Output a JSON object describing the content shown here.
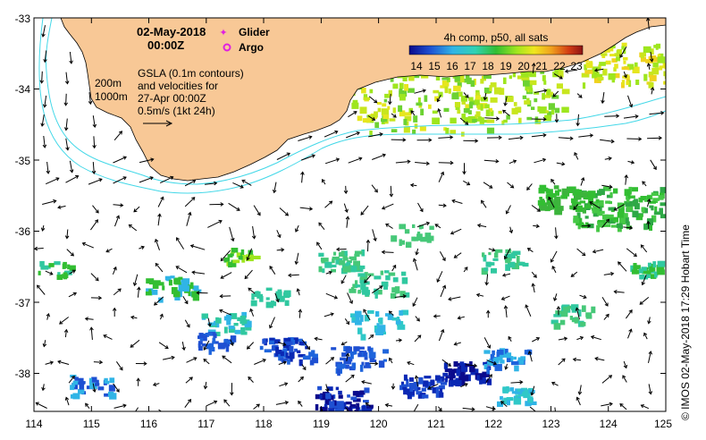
{
  "map": {
    "date": "02-May-2018",
    "time": "00:00Z",
    "legend_glider": "Glider",
    "legend_argo": "Argo",
    "sla_line1": "GSLA (0.1m contours)",
    "sla_line2": "and velocities for",
    "sla_line3": "27-Apr 00:00Z",
    "sla_line4": "0.5m/s (1kt 24h)",
    "isobath_200": "200m",
    "isobath_1000": "1000m",
    "colorbar_title": "4h comp, p50, all sats",
    "colorbar_ticks": [
      "14",
      "15",
      "16",
      "17",
      "18",
      "19",
      "20",
      "21",
      "22",
      "23"
    ],
    "credit": "IMOS 02-May-2018 17:29 Hobart Time",
    "x_ticks": [
      "114",
      "115",
      "116",
      "117",
      "118",
      "119",
      "120",
      "121",
      "122",
      "123",
      "124",
      "125"
    ],
    "y_ticks": [
      "-33",
      "-34",
      "-35",
      "-36",
      "-37",
      "-38"
    ],
    "colors": {
      "land": "#f8c896",
      "isobath": "#44d8e8",
      "glider": "#e020e0",
      "argo": "#e020e0"
    }
  }
}
